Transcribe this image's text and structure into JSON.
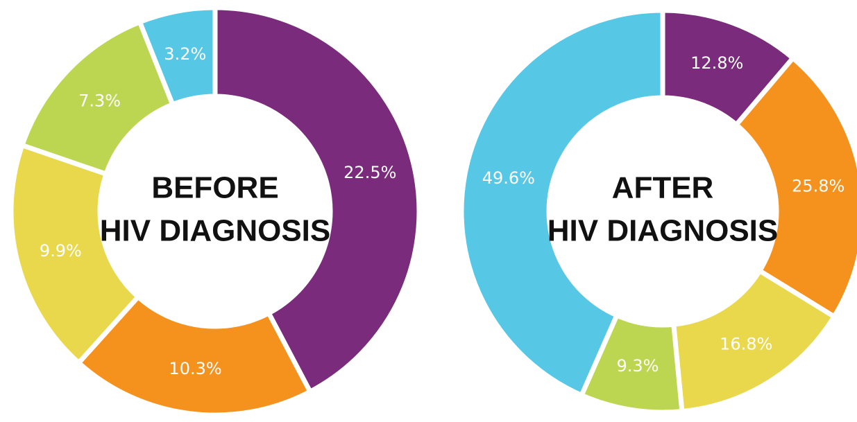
{
  "chart_data": [
    {
      "type": "donut",
      "title": [
        "BEFORE",
        "HIV DIAGNOSIS"
      ],
      "categories": [
        null,
        null,
        null,
        null,
        null
      ],
      "values": [
        22.5,
        10.3,
        9.9,
        7.3,
        3.2
      ],
      "value_labels": [
        "22.5%",
        "10.3%",
        "9.9%",
        "7.3%",
        "3.2%"
      ],
      "colors": [
        "#7b2b7b",
        "#f5921e",
        "#e9d84b",
        "#bdd651",
        "#56c8e6"
      ]
    },
    {
      "type": "donut",
      "title": [
        "AFTER",
        "HIV DIAGNOSIS"
      ],
      "categories": [
        null,
        null,
        null,
        null,
        null
      ],
      "values": [
        12.8,
        25.8,
        16.8,
        9.3,
        49.6
      ],
      "value_labels": [
        "12.8%",
        "25.8%",
        "16.8%",
        "9.3%",
        "49.6%"
      ],
      "colors": [
        "#7b2b7b",
        "#f5921e",
        "#e9d84b",
        "#bdd651",
        "#56c8e6"
      ]
    }
  ]
}
